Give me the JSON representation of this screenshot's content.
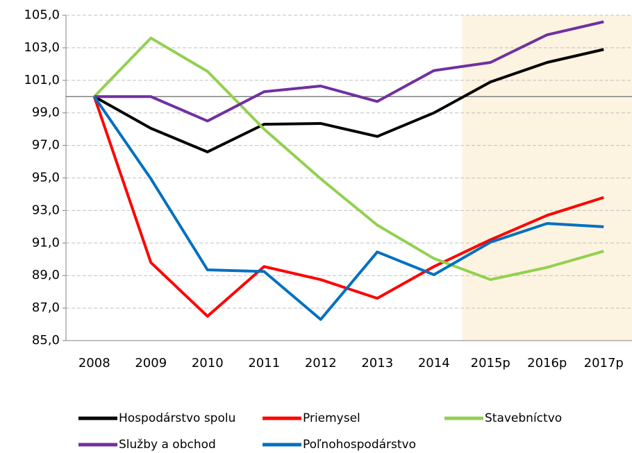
{
  "chart_data": {
    "type": "line",
    "categories": [
      "2008",
      "2009",
      "2010",
      "2011",
      "2012",
      "2013",
      "2014",
      "2015p",
      "2016p",
      "2017p"
    ],
    "series": [
      {
        "name": "Hospodárstvo spolu",
        "color": "#000000",
        "values": [
          100,
          98.05,
          96.6,
          98.3,
          98.35,
          97.55,
          99.0,
          100.9,
          102.1,
          102.9
        ]
      },
      {
        "name": "Priemysel",
        "color": "#ff0000",
        "values": [
          100,
          89.8,
          86.5,
          89.55,
          88.75,
          87.6,
          89.55,
          91.2,
          92.7,
          93.8
        ]
      },
      {
        "name": "Stavebníctvo",
        "color": "#92d050",
        "values": [
          100,
          103.6,
          101.55,
          98.0,
          94.95,
          92.1,
          90.05,
          88.75,
          89.5,
          90.5
        ]
      },
      {
        "name": "Služby a obchod",
        "color": "#7030a0",
        "values": [
          100,
          100,
          98.5,
          100.3,
          100.65,
          99.7,
          101.6,
          102.1,
          103.8,
          104.6
        ]
      },
      {
        "name": "Poľnohospodárstvo",
        "color": "#0070c0",
        "values": [
          100,
          94.95,
          89.35,
          89.25,
          86.3,
          90.45,
          89.05,
          91.05,
          92.2,
          92.0
        ]
      }
    ],
    "ylim": [
      85,
      105
    ],
    "yticks": [
      {
        "value": 85,
        "label": "85,0"
      },
      {
        "value": 87,
        "label": "87,0"
      },
      {
        "value": 89,
        "label": "89,0"
      },
      {
        "value": 91,
        "label": "91,0"
      },
      {
        "value": 93,
        "label": "93,0"
      },
      {
        "value": 95,
        "label": "95,0"
      },
      {
        "value": 97,
        "label": "97,0"
      },
      {
        "value": 99,
        "label": "99,0"
      },
      {
        "value": 101,
        "label": "101,0"
      },
      {
        "value": 103,
        "label": "103,0"
      },
      {
        "value": 105,
        "label": "105,0"
      }
    ],
    "grid": true,
    "reference_line": 100,
    "highlight": {
      "from": "2015p",
      "color": "#fdf3e1"
    },
    "legend": "bottom"
  }
}
